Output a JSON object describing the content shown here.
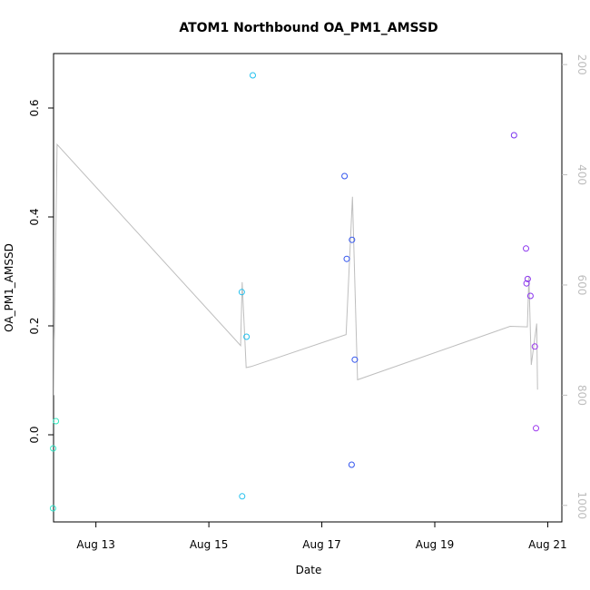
{
  "chart_data": {
    "type": "scatter",
    "title": "ATOM1 Northbound OA_PM1_AMSSD",
    "xlabel": "Date",
    "ylabel": "OA_PM1_AMSSD",
    "xlim": [
      "2021-08-12T06:00",
      "2021-08-21T06:00"
    ],
    "ylim": [
      -0.16,
      0.7
    ],
    "x_ticks": [
      {
        "value": "2021-08-13T00:00",
        "label": "Aug 13"
      },
      {
        "value": "2021-08-15T00:00",
        "label": "Aug 15"
      },
      {
        "value": "2021-08-17T00:00",
        "label": "Aug 17"
      },
      {
        "value": "2021-08-19T00:00",
        "label": "Aug 19"
      },
      {
        "value": "2021-08-21T00:00",
        "label": "Aug 21"
      }
    ],
    "y_ticks": [
      0.0,
      0.2,
      0.4,
      0.6
    ],
    "y_tick_labels": [
      "0.0",
      "0.2",
      "0.4",
      "0.6"
    ],
    "y2lim": [
      1030,
      180
    ],
    "y2_ticks": [
      200,
      400,
      600,
      800,
      1000
    ],
    "y2_tick_labels": [
      "200",
      "400",
      "600",
      "800",
      "1000"
    ],
    "grid": false,
    "colors": {
      "line": "#bebebe",
      "axis": "#000000",
      "right_axis": "#bebebe"
    },
    "series": [
      {
        "type": "scatter",
        "marker": "open-circle",
        "points": [
          {
            "x": "2021-08-12T05:45",
            "y": -0.135,
            "color": "#33e8d0"
          },
          {
            "x": "2021-08-12T05:50",
            "y": -0.025,
            "color": "#33e8c8"
          },
          {
            "x": "2021-08-12T07:00",
            "y": 0.025,
            "color": "#33e8c0"
          },
          {
            "x": "2021-08-15T14:10",
            "y": -0.113,
            "color": "#22c0ee"
          },
          {
            "x": "2021-08-15T14:00",
            "y": 0.262,
            "color": "#22c0ee"
          },
          {
            "x": "2021-08-15T16:00",
            "y": 0.18,
            "color": "#22c0ee"
          },
          {
            "x": "2021-08-15T18:40",
            "y": 0.66,
            "color": "#22c0ee"
          },
          {
            "x": "2021-08-17T09:40",
            "y": 0.475,
            "color": "#3355ee"
          },
          {
            "x": "2021-08-17T10:35",
            "y": 0.323,
            "color": "#3355ee"
          },
          {
            "x": "2021-08-17T12:50",
            "y": 0.358,
            "color": "#3355ee"
          },
          {
            "x": "2021-08-17T12:40",
            "y": -0.055,
            "color": "#3355ee"
          },
          {
            "x": "2021-08-17T14:00",
            "y": 0.138,
            "color": "#3355ee"
          },
          {
            "x": "2021-08-20T09:40",
            "y": 0.55,
            "color": "#7a33ee"
          },
          {
            "x": "2021-08-20T14:45",
            "y": 0.342,
            "color": "#8a33ee"
          },
          {
            "x": "2021-08-20T15:30",
            "y": 0.286,
            "color": "#8a33ee"
          },
          {
            "x": "2021-08-20T15:00",
            "y": 0.278,
            "color": "#8a33ee"
          },
          {
            "x": "2021-08-20T16:40",
            "y": 0.255,
            "color": "#8a33ee"
          },
          {
            "x": "2021-08-20T18:30",
            "y": 0.162,
            "color": "#9a33ee"
          },
          {
            "x": "2021-08-20T19:00",
            "y": 0.012,
            "color": "#9a33ee"
          }
        ]
      },
      {
        "type": "line",
        "axis": "right",
        "color": "#bebebe",
        "points": [
          {
            "x": "2021-08-12T05:40",
            "y": 175
          },
          {
            "x": "2021-08-12T06:00",
            "y": 800
          },
          {
            "x": "2021-08-12T07:30",
            "y": 345
          },
          {
            "x": "2021-08-15T13:30",
            "y": 710
          },
          {
            "x": "2021-08-15T14:10",
            "y": 595
          },
          {
            "x": "2021-08-15T15:50",
            "y": 750
          },
          {
            "x": "2021-08-15T18:00",
            "y": 748
          },
          {
            "x": "2021-08-17T10:20",
            "y": 690
          },
          {
            "x": "2021-08-17T13:00",
            "y": 440
          },
          {
            "x": "2021-08-17T15:10",
            "y": 772
          },
          {
            "x": "2021-08-20T08:00",
            "y": 675
          },
          {
            "x": "2021-08-20T15:20",
            "y": 676
          },
          {
            "x": "2021-08-20T16:00",
            "y": 585
          },
          {
            "x": "2021-08-20T17:00",
            "y": 745
          },
          {
            "x": "2021-08-20T19:20",
            "y": 670
          },
          {
            "x": "2021-08-20T19:40",
            "y": 790
          }
        ]
      }
    ]
  }
}
